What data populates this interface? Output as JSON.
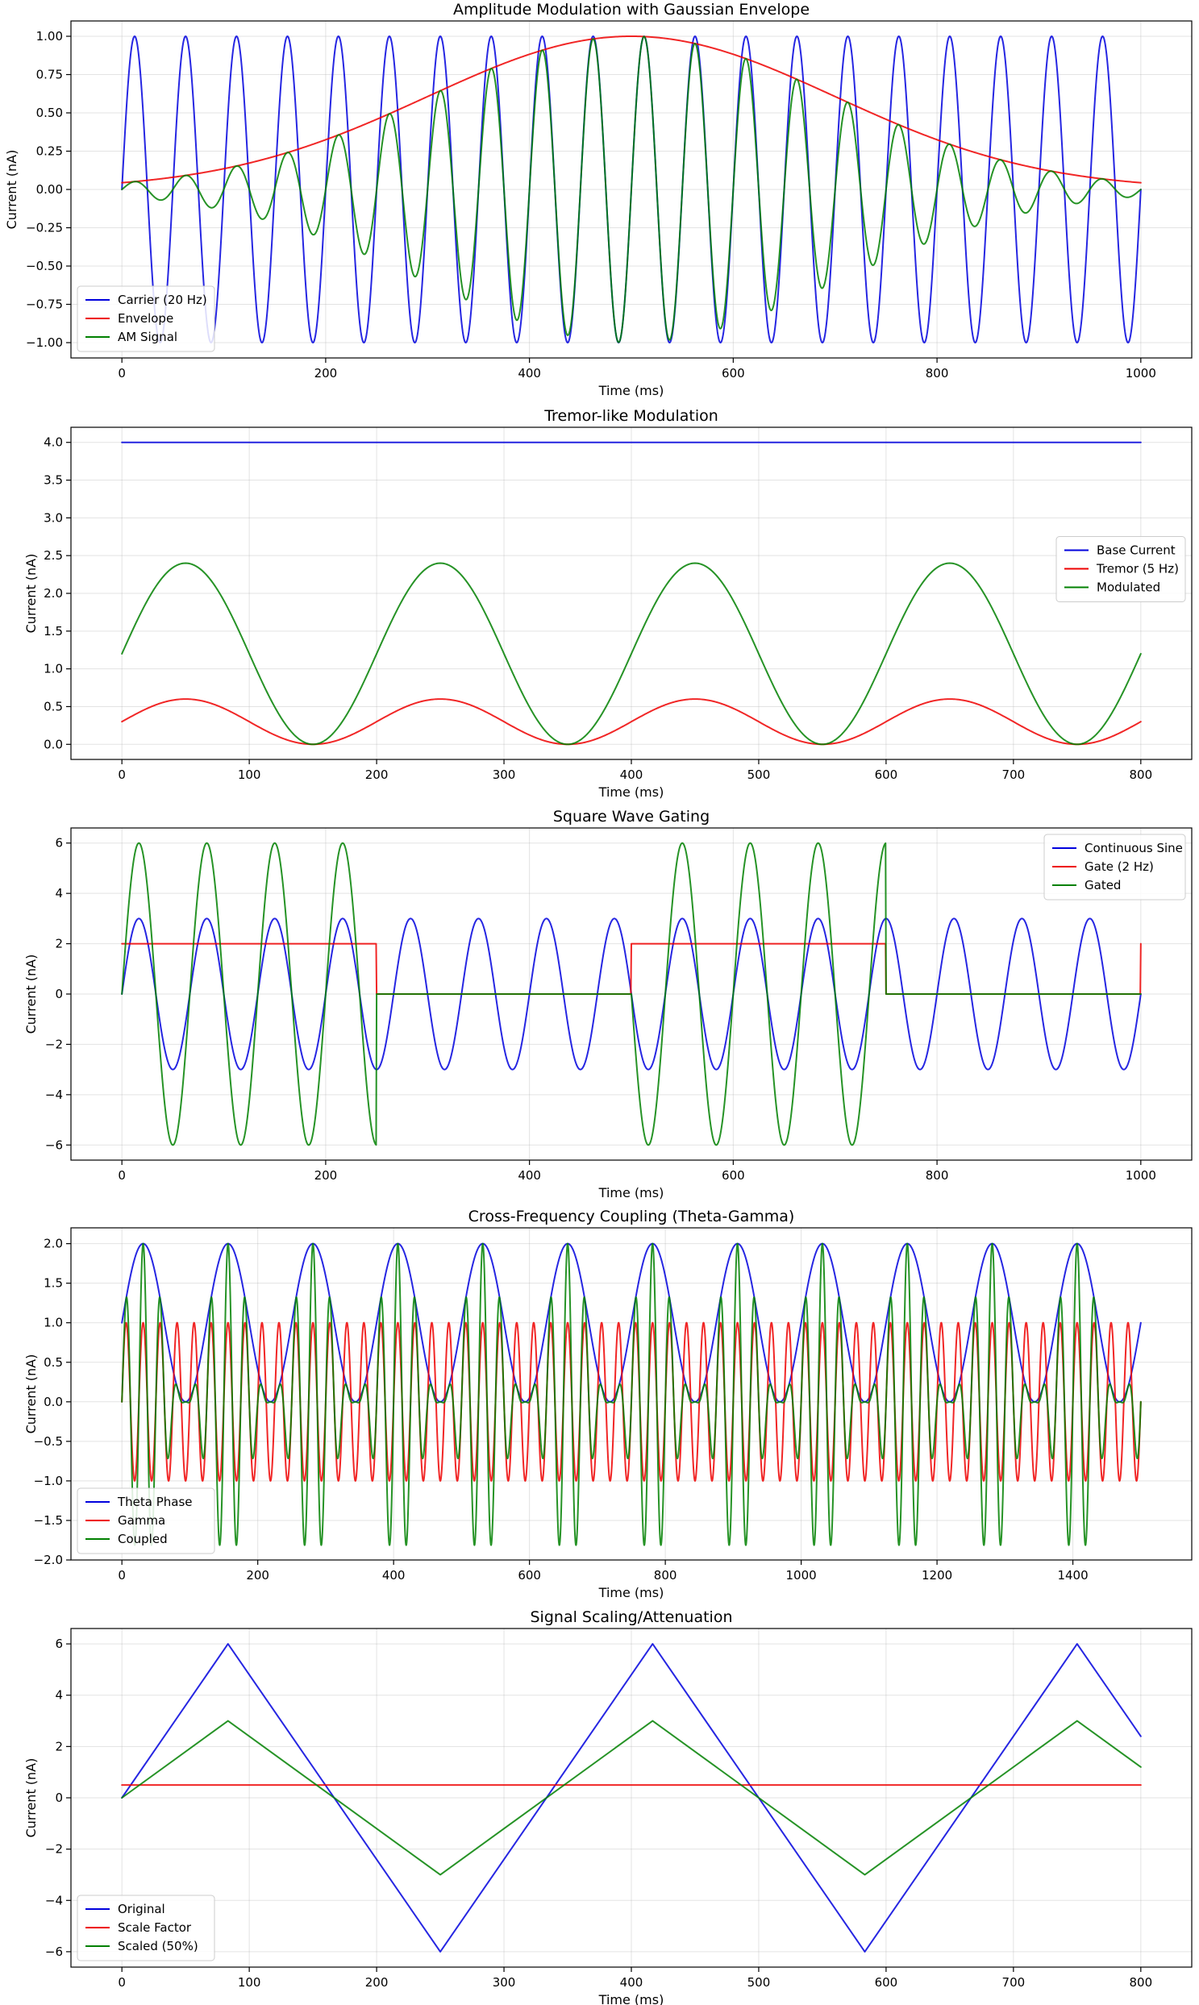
{
  "colors": {
    "blue": "#0000dd",
    "red": "#ee0000",
    "green": "#008000"
  },
  "chart_data": [
    {
      "type": "line",
      "title": "Amplitude Modulation with Gaussian Envelope",
      "xlabel": "Time (ms)",
      "ylabel": "Current (nA)",
      "xlim": [
        -50,
        1050
      ],
      "ylim": [
        -1.1,
        1.1
      ],
      "xticks": [
        0,
        200,
        400,
        600,
        800,
        1000
      ],
      "xtick_labels": [
        "0",
        "200",
        "400",
        "600",
        "800",
        "1000"
      ],
      "yticks": [
        -1.0,
        -0.75,
        -0.5,
        -0.25,
        0.0,
        0.25,
        0.5,
        0.75,
        1.0
      ],
      "ytick_labels": [
        "−1.00",
        "−0.75",
        "−0.50",
        "−0.25",
        "0.00",
        "0.25",
        "0.50",
        "0.75",
        "1.00"
      ],
      "grid": true,
      "legend_position": "lower-left",
      "series": [
        {
          "name": "Carrier (20 Hz)",
          "color": "#0000dd",
          "func": "sine",
          "amp": 1,
          "freq_hz": 20,
          "x_range": [
            0,
            1000
          ],
          "samples": 2001
        },
        {
          "name": "Envelope",
          "color": "#ee0000",
          "func": "gauss",
          "center": 500,
          "sigma": 200,
          "x_range": [
            0,
            1000
          ],
          "samples": 801
        },
        {
          "name": "AM Signal",
          "color": "#008000",
          "func": "gauss_sine",
          "center": 500,
          "sigma": 200,
          "freq_hz": 20,
          "x_range": [
            0,
            1000
          ],
          "samples": 2001
        }
      ]
    },
    {
      "type": "line",
      "title": "Tremor-like Modulation",
      "xlabel": "Time (ms)",
      "ylabel": "Current (nA)",
      "xlim": [
        -40,
        840
      ],
      "ylim": [
        -0.2,
        4.2
      ],
      "xticks": [
        0,
        100,
        200,
        300,
        400,
        500,
        600,
        700,
        800
      ],
      "xtick_labels": [
        "0",
        "100",
        "200",
        "300",
        "400",
        "500",
        "600",
        "700",
        "800"
      ],
      "yticks": [
        0.0,
        0.5,
        1.0,
        1.5,
        2.0,
        2.5,
        3.0,
        3.5,
        4.0
      ],
      "ytick_labels": [
        "0.0",
        "0.5",
        "1.0",
        "1.5",
        "2.0",
        "2.5",
        "3.0",
        "3.5",
        "4.0"
      ],
      "grid": true,
      "legend_position": "center-right",
      "series": [
        {
          "name": "Base Current",
          "color": "#0000dd",
          "func": "const",
          "value": 4.0,
          "x_range": [
            0,
            800
          ],
          "samples": 2
        },
        {
          "name": "Tremor (5 Hz)",
          "color": "#ee0000",
          "func": "sine",
          "offset": 0.3,
          "amp": 0.3,
          "freq_hz": 5,
          "x_range": [
            0,
            800
          ],
          "samples": 801
        },
        {
          "name": "Modulated",
          "color": "#008000",
          "func": "sine",
          "offset": 1.2,
          "amp": 1.2,
          "freq_hz": 5,
          "x_range": [
            0,
            800
          ],
          "samples": 801
        }
      ]
    },
    {
      "type": "line",
      "title": "Square Wave Gating",
      "xlabel": "Time (ms)",
      "ylabel": "Current (nA)",
      "xlim": [
        -50,
        1050
      ],
      "ylim": [
        -6.6,
        6.6
      ],
      "xticks": [
        0,
        200,
        400,
        600,
        800,
        1000
      ],
      "xtick_labels": [
        "0",
        "200",
        "400",
        "600",
        "800",
        "1000"
      ],
      "yticks": [
        -6,
        -4,
        -2,
        0,
        2,
        4,
        6
      ],
      "ytick_labels": [
        "−6",
        "−4",
        "−2",
        "0",
        "2",
        "4",
        "6"
      ],
      "grid": true,
      "legend_position": "upper-right",
      "series": [
        {
          "name": "Continuous Sine",
          "color": "#0000dd",
          "func": "sine",
          "amp": 3,
          "freq_hz": 15,
          "x_range": [
            0,
            1000
          ],
          "samples": 2001
        },
        {
          "name": "Gate (2 Hz)",
          "color": "#ee0000",
          "func": "square",
          "high": 2,
          "low": 0,
          "freq_hz": 2,
          "x_range": [
            0,
            1000
          ],
          "samples": 2001
        },
        {
          "name": "Gated",
          "color": "#008000",
          "func": "gated_sine",
          "amp": 6,
          "freq_hz": 15,
          "gate_freq_hz": 2,
          "x_range": [
            0,
            1000
          ],
          "samples": 2001
        }
      ]
    },
    {
      "type": "line",
      "title": "Cross-Frequency Coupling (Theta-Gamma)",
      "xlabel": "Time (ms)",
      "ylabel": "Current (nA)",
      "xlim": [
        -75,
        1575
      ],
      "ylim": [
        -2.0,
        2.2
      ],
      "xticks": [
        0,
        200,
        400,
        600,
        800,
        1000,
        1200,
        1400
      ],
      "xtick_labels": [
        "0",
        "200",
        "400",
        "600",
        "800",
        "1000",
        "1200",
        "1400"
      ],
      "yticks": [
        -2.0,
        -1.5,
        -1.0,
        -0.5,
        0.0,
        0.5,
        1.0,
        1.5,
        2.0
      ],
      "ytick_labels": [
        "−2.0",
        "−1.5",
        "−1.0",
        "−0.5",
        "0.0",
        "0.5",
        "1.0",
        "1.5",
        "2.0"
      ],
      "grid": true,
      "legend_position": "lower-left",
      "series": [
        {
          "name": "Theta Phase",
          "color": "#0000dd",
          "func": "sine",
          "offset": 1,
          "amp": 1,
          "freq_hz": 8,
          "x_range": [
            0,
            1500
          ],
          "samples": 3001
        },
        {
          "name": "Gamma",
          "color": "#ee0000",
          "func": "sine",
          "amp": 1,
          "freq_hz": 40,
          "x_range": [
            0,
            1500
          ],
          "samples": 6001
        },
        {
          "name": "Coupled",
          "color": "#008000",
          "func": "coupled",
          "theta_hz": 8,
          "gamma_hz": 40,
          "x_range": [
            0,
            1500
          ],
          "samples": 6001
        }
      ]
    },
    {
      "type": "line",
      "title": "Signal Scaling/Attenuation",
      "xlabel": "Time (ms)",
      "ylabel": "Current (nA)",
      "xlim": [
        -40,
        840
      ],
      "ylim": [
        -6.6,
        6.6
      ],
      "xticks": [
        0,
        100,
        200,
        300,
        400,
        500,
        600,
        700,
        800
      ],
      "xtick_labels": [
        "0",
        "100",
        "200",
        "300",
        "400",
        "500",
        "600",
        "700",
        "800"
      ],
      "yticks": [
        -6,
        -4,
        -2,
        0,
        2,
        4,
        6
      ],
      "ytick_labels": [
        "−6",
        "−4",
        "−2",
        "0",
        "2",
        "4",
        "6"
      ],
      "grid": true,
      "legend_position": "lower-left",
      "series": [
        {
          "name": "Original",
          "color": "#0000dd",
          "func": "points",
          "x": [
            0,
            83.3,
            250,
            416.7,
            583.3,
            750,
            800
          ],
          "y": [
            0,
            6,
            -6,
            6,
            -6,
            6,
            2.4
          ]
        },
        {
          "name": "Scale Factor",
          "color": "#ee0000",
          "func": "const",
          "value": 0.5,
          "x_range": [
            0,
            800
          ],
          "samples": 2
        },
        {
          "name": "Scaled (50%)",
          "color": "#008000",
          "func": "points",
          "x": [
            0,
            83.3,
            250,
            416.7,
            583.3,
            750,
            800
          ],
          "y": [
            0,
            3,
            -3,
            3,
            -3,
            3,
            1.2
          ]
        }
      ]
    }
  ]
}
